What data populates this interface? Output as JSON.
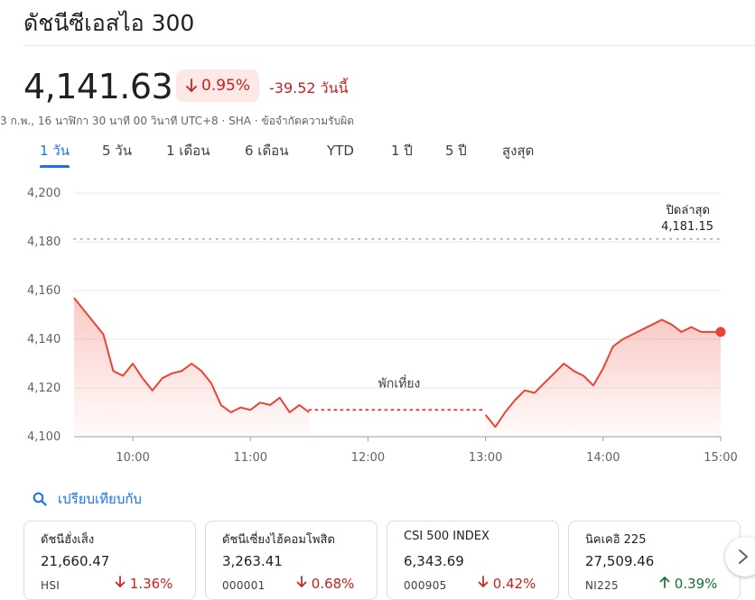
{
  "header": {
    "title": "ดัชนีซีเอสไอ 300",
    "price": "4,141.63",
    "percent_change": "0.95%",
    "change_today": "-39.52 วันนี้",
    "meta_datetime": "3 ก.พ., 16 นาฬิกา 30 นาที 00 วินาที UTC+8",
    "meta_exchange": "SHA",
    "meta_disclaimer": "ข้อจำกัดความรับผิด",
    "sep": "·",
    "down_arrow_icon": "arrow-down-icon",
    "colors": {
      "down": "#c5221f",
      "down_bg": "#fce8e6",
      "up": "#137333",
      "accent": "#1a73e8"
    }
  },
  "range_tabs": [
    {
      "label": "1 วัน",
      "active": true
    },
    {
      "label": "5 วัน",
      "active": false
    },
    {
      "label": "1 เดือน",
      "active": false
    },
    {
      "label": "6 เดือน",
      "active": false
    },
    {
      "label": "YTD",
      "active": false
    },
    {
      "label": "1 ปี",
      "active": false
    },
    {
      "label": "5 ปี",
      "active": false
    },
    {
      "label": "สูงสุด",
      "active": false
    }
  ],
  "chart_data": {
    "type": "area",
    "title": "",
    "xlabel": "",
    "ylabel": "",
    "x_ticks": [
      "10:00",
      "11:00",
      "12:00",
      "13:00",
      "14:00",
      "15:00"
    ],
    "y_ticks": [
      "4,100",
      "4,120",
      "4,140",
      "4,160",
      "4,180",
      "4,200"
    ],
    "ylim": [
      4100,
      4200
    ],
    "xlim": [
      "09:30",
      "15:00"
    ],
    "grid": true,
    "line_color": "#ea4335",
    "previous_close": {
      "label": "ปิดล่าสุด",
      "value": 4181.15,
      "value_label": "4,181.15"
    },
    "break_label": "พักเที่ยง",
    "series": [
      {
        "x": [
          "09:30",
          "09:35",
          "09:40",
          "09:45",
          "09:50",
          "09:55",
          "10:00",
          "10:05",
          "10:10",
          "10:15",
          "10:20",
          "10:25",
          "10:30",
          "10:35",
          "10:40",
          "10:45",
          "10:50",
          "10:55",
          "11:00",
          "11:05",
          "11:10",
          "11:15",
          "11:20",
          "11:25",
          "11:30"
        ],
        "y": [
          4157,
          4152,
          4147,
          4142,
          4127,
          4125,
          4130,
          4124,
          4119,
          4124,
          4126,
          4127,
          4130,
          4127,
          4122,
          4113,
          4110,
          4112,
          4111,
          4114,
          4113,
          4116,
          4110,
          4113,
          4110
        ]
      },
      {
        "x": [
          "13:00",
          "13:05",
          "13:10",
          "13:15",
          "13:20",
          "13:25",
          "13:30",
          "13:35",
          "13:40",
          "13:45",
          "13:50",
          "13:55",
          "14:00",
          "14:05",
          "14:10",
          "14:15",
          "14:20",
          "14:25",
          "14:30",
          "14:35",
          "14:40",
          "14:45",
          "14:50",
          "14:55",
          "15:00"
        ],
        "y": [
          4109,
          4104,
          4110,
          4115,
          4119,
          4118,
          4122,
          4126,
          4130,
          4127,
          4125,
          4121,
          4128,
          4137,
          4140,
          4142,
          4144,
          4146,
          4148,
          4146,
          4143,
          4145,
          4143,
          4143,
          4143
        ]
      }
    ],
    "lunch_gap": {
      "from": "11:30",
      "to": "13:00",
      "y": 4111
    }
  },
  "compare": {
    "label": "เปรียบเทียบกับ",
    "icon": "search-icon"
  },
  "compare_cards": [
    {
      "name": "ดัชนีฮั่งเส็ง",
      "value": "21,660.47",
      "symbol": "HSI",
      "change": "1.36%",
      "direction": "down"
    },
    {
      "name": "ดัชนีเซี่ยงไฮ้คอมโพสิต",
      "value": "3,263.41",
      "symbol": "000001",
      "change": "0.68%",
      "direction": "down"
    },
    {
      "name": "CSI 500 INDEX",
      "value": "6,343.69",
      "symbol": "000905",
      "change": "0.42%",
      "direction": "down"
    },
    {
      "name": "นิคเคอิ 225",
      "value": "27,509.46",
      "symbol": "NI225",
      "change": "0.39%",
      "direction": "up"
    }
  ],
  "carousel": {
    "next_icon": "chevron-right-icon"
  }
}
